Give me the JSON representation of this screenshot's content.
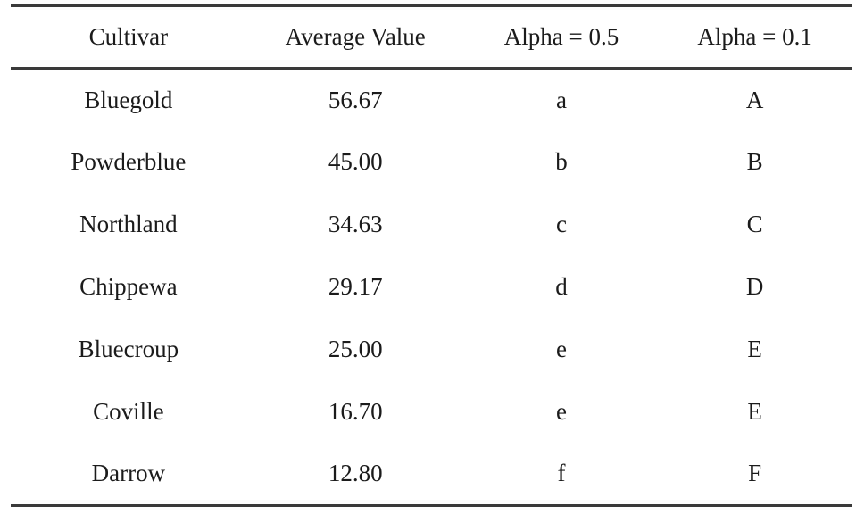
{
  "colors": {
    "background": "#ffffff",
    "text": "#1b1b1b",
    "rule": "#3a3a3a"
  },
  "table": {
    "columns": [
      {
        "id": "cultivar",
        "label": "Cultivar"
      },
      {
        "id": "average_value",
        "label": "Average Value"
      },
      {
        "id": "alpha_05",
        "label": "Alpha = 0.5"
      },
      {
        "id": "alpha_01",
        "label": "Alpha = 0.1"
      }
    ],
    "rows": [
      {
        "cultivar": "Bluegold",
        "average_value": "56.67",
        "alpha_05": "a",
        "alpha_01": "A"
      },
      {
        "cultivar": "Powderblue",
        "average_value": "45.00",
        "alpha_05": "b",
        "alpha_01": "B"
      },
      {
        "cultivar": "Northland",
        "average_value": "34.63",
        "alpha_05": "c",
        "alpha_01": "C"
      },
      {
        "cultivar": "Chippewa",
        "average_value": "29.17",
        "alpha_05": "d",
        "alpha_01": "D"
      },
      {
        "cultivar": "Bluecroup",
        "average_value": "25.00",
        "alpha_05": "e",
        "alpha_01": "E"
      },
      {
        "cultivar": "Coville",
        "average_value": "16.70",
        "alpha_05": "e",
        "alpha_01": "E"
      },
      {
        "cultivar": "Darrow",
        "average_value": "12.80",
        "alpha_05": "f",
        "alpha_01": "F"
      }
    ]
  },
  "chart_data": {
    "type": "table",
    "columns": [
      "Cultivar",
      "Average Value",
      "Alpha = 0.5",
      "Alpha = 0.1"
    ],
    "rows": [
      [
        "Bluegold",
        56.67,
        "a",
        "A"
      ],
      [
        "Powderblue",
        45.0,
        "b",
        "B"
      ],
      [
        "Northland",
        34.63,
        "c",
        "C"
      ],
      [
        "Chippewa",
        29.17,
        "d",
        "D"
      ],
      [
        "Bluecroup",
        25.0,
        "e",
        "E"
      ],
      [
        "Coville",
        16.7,
        "e",
        "E"
      ],
      [
        "Darrow",
        12.8,
        "f",
        "F"
      ]
    ]
  }
}
